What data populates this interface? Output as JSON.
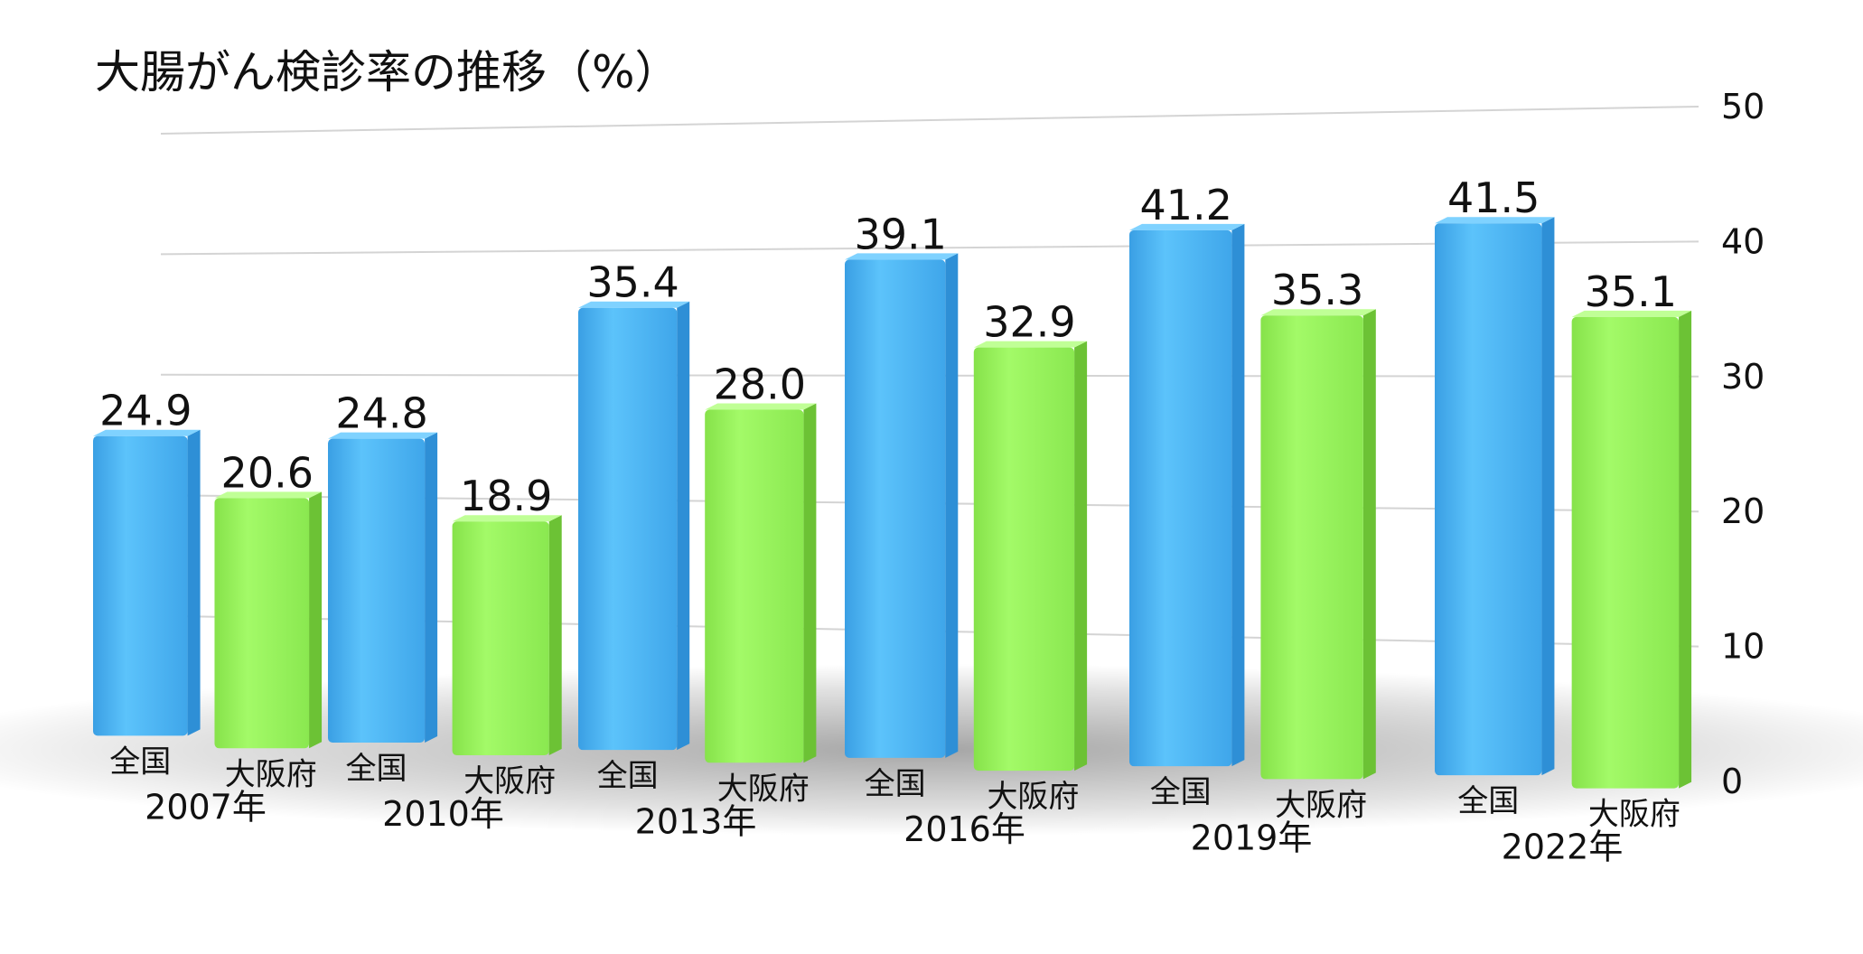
{
  "chart_data": {
    "type": "bar",
    "title": "大腸がん検診率の推移（%）",
    "categories": [
      "2007年",
      "2010年",
      "2013年",
      "2016年",
      "2019年",
      "2022年"
    ],
    "series": [
      {
        "name": "全国",
        "color": "#4db3f5",
        "values": [
          24.9,
          24.8,
          35.4,
          39.1,
          41.2,
          41.5
        ]
      },
      {
        "name": "大阪府",
        "color": "#99f55e",
        "values": [
          20.6,
          18.9,
          28.0,
          32.9,
          35.3,
          35.1
        ]
      }
    ],
    "ylim": [
      0,
      50
    ],
    "yticks": [
      "0",
      "10",
      "20",
      "30",
      "40",
      "50"
    ],
    "value_labels": [
      [
        "24.9",
        "24.8",
        "35.4",
        "39.1",
        "41.2",
        "41.5"
      ],
      [
        "20.6",
        "18.9",
        "28.0",
        "32.9",
        "35.3",
        "35.1"
      ]
    ],
    "grid": true,
    "axis_position": "right"
  }
}
